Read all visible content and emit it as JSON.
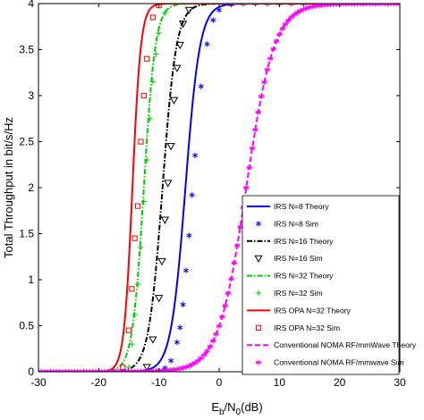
{
  "chart_data": {
    "type": "line",
    "title": "",
    "xlabel": "E_b/N_0(dB)",
    "ylabel": "Total Throughput in bit/s/Hz",
    "xlim": [
      -30,
      30
    ],
    "ylim": [
      0,
      4
    ],
    "xticks": [
      -30,
      -20,
      -10,
      0,
      10,
      20,
      30
    ],
    "yticks": [
      0,
      0.5,
      1,
      1.5,
      2,
      2.5,
      3,
      3.5,
      4
    ],
    "grid": false,
    "legend_position": "lower-right",
    "series": [
      {
        "name": "IRS N=8 Theory",
        "kind": "line",
        "color": "#0000ff",
        "dash": "solid",
        "model": {
          "center": -5.6,
          "scale": 1.2
        }
      },
      {
        "name": "IRS N=8 Sim",
        "kind": "markers",
        "color": "#0000ff",
        "marker": "star",
        "x": [
          -10,
          -9,
          -8,
          -7,
          -6.5,
          -6,
          -5.5,
          -5,
          -4.5,
          -4,
          -3,
          -2,
          -1,
          0,
          2,
          4,
          6,
          8,
          10,
          12,
          14,
          16,
          18,
          20,
          22,
          24,
          26,
          28,
          30
        ],
        "values": [
          0.01,
          0.04,
          0.12,
          0.32,
          0.48,
          0.73,
          1.1,
          1.48,
          1.92,
          2.35,
          3.1,
          3.56,
          3.82,
          3.93,
          3.99,
          4,
          4,
          4,
          4,
          4,
          4,
          4,
          4,
          4,
          4,
          4,
          4,
          4,
          4
        ]
      },
      {
        "name": "IRS N=16 Theory",
        "kind": "line",
        "color": "#000000",
        "dash": "dashdot",
        "model": {
          "center": -9.4,
          "scale": 1.15
        }
      },
      {
        "name": "IRS N=16 Sim",
        "kind": "markers",
        "color": "#000000",
        "marker": "triangle-down",
        "x": [
          -12,
          -11,
          -10,
          -9.5,
          -9,
          -8.5,
          -8,
          -7.5,
          -7,
          -6.5,
          -6,
          -5
        ],
        "values": [
          0.05,
          0.35,
          0.8,
          1.2,
          1.65,
          2.05,
          2.45,
          2.95,
          3.3,
          3.55,
          3.78,
          3.93
        ]
      },
      {
        "name": "IRS N=32 Theory",
        "kind": "line",
        "color": "#00cc00",
        "dash": "dashdot",
        "model": {
          "center": -12.5,
          "scale": 0.95
        }
      },
      {
        "name": "IRS N=32 Sim",
        "kind": "markers",
        "color": "#00cc00",
        "marker": "plus",
        "x": [
          -15,
          -14.5,
          -14,
          -13.5,
          -13,
          -12.5,
          -12,
          -11.5,
          -11,
          -10.5,
          -10,
          -9
        ],
        "values": [
          0.05,
          0.3,
          0.62,
          0.95,
          1.35,
          1.85,
          2.3,
          2.75,
          3.15,
          3.45,
          3.68,
          3.9
        ]
      },
      {
        "name": "IRS OPA N=32 Theory",
        "kind": "line",
        "color": "#ff0000",
        "dash": "solid",
        "model": {
          "center": -14.4,
          "scale": 0.7
        }
      },
      {
        "name": "IRS OPA N=32 Sim",
        "kind": "markers",
        "color": "#ff0000",
        "marker": "square",
        "x": [
          -16,
          -15,
          -14.5,
          -14,
          -13.5,
          -13,
          -12.5,
          -12,
          -11,
          -10
        ],
        "values": [
          0.05,
          0.45,
          0.9,
          1.45,
          1.8,
          2.5,
          3.0,
          3.4,
          3.85,
          3.98
        ]
      },
      {
        "name": "Conventional NOMA RF/mmWave Theory",
        "kind": "line",
        "color": "#ff00ff",
        "dash": "dashed",
        "model": {
          "center": 4.5,
          "scale": 2.3
        }
      },
      {
        "name": "Conventional NOMA RF/mmwave Sim",
        "kind": "markers",
        "color": "#ff00ff",
        "marker": "asterisk",
        "model": {
          "center": 4.5,
          "scale": 2.3,
          "step": 0.5
        }
      }
    ]
  }
}
